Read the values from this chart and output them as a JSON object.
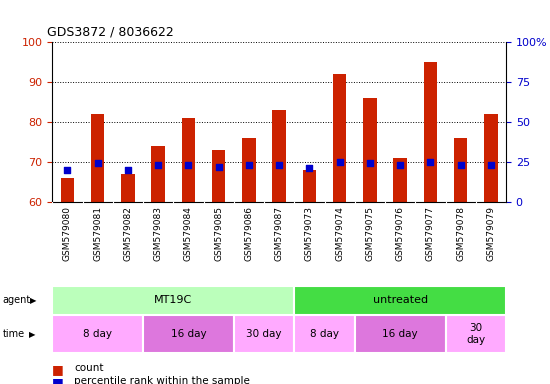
{
  "title": "GDS3872 / 8036622",
  "samples": [
    "GSM579080",
    "GSM579081",
    "GSM579082",
    "GSM579083",
    "GSM579084",
    "GSM579085",
    "GSM579086",
    "GSM579087",
    "GSM579073",
    "GSM579074",
    "GSM579075",
    "GSM579076",
    "GSM579077",
    "GSM579078",
    "GSM579079"
  ],
  "count_values": [
    66,
    82,
    67,
    74,
    81,
    73,
    76,
    83,
    68,
    92,
    86,
    71,
    95,
    76,
    82
  ],
  "percentile_values": [
    20,
    24,
    20,
    23,
    23,
    22,
    23,
    23,
    21,
    25,
    24,
    23,
    25,
    23,
    23
  ],
  "bar_color": "#cc2200",
  "dot_color": "#0000cc",
  "ylim_left": [
    60,
    100
  ],
  "ylim_right": [
    0,
    100
  ],
  "yticks_left": [
    60,
    70,
    80,
    90,
    100
  ],
  "yticks_right": [
    0,
    25,
    50,
    75,
    100
  ],
  "agent_groups": [
    {
      "label": "MT19C",
      "start": 0,
      "end": 7,
      "color": "#bbffbb"
    },
    {
      "label": "untreated",
      "start": 8,
      "end": 14,
      "color": "#44dd44"
    }
  ],
  "time_groups": [
    {
      "label": "8 day",
      "start": 0,
      "end": 2,
      "color": "#ffaaff"
    },
    {
      "label": "16 day",
      "start": 3,
      "end": 5,
      "color": "#dd77dd"
    },
    {
      "label": "30 day",
      "start": 6,
      "end": 7,
      "color": "#ffaaff"
    },
    {
      "label": "8 day",
      "start": 8,
      "end": 9,
      "color": "#ffaaff"
    },
    {
      "label": "16 day",
      "start": 10,
      "end": 12,
      "color": "#dd77dd"
    },
    {
      "label": "30\nday",
      "start": 13,
      "end": 14,
      "color": "#ffaaff"
    }
  ],
  "background_color": "#ffffff",
  "axis_color_left": "#cc2200",
  "axis_color_right": "#0000cc",
  "bar_width": 0.45,
  "dot_size": 18,
  "xtick_bg": "#cccccc"
}
